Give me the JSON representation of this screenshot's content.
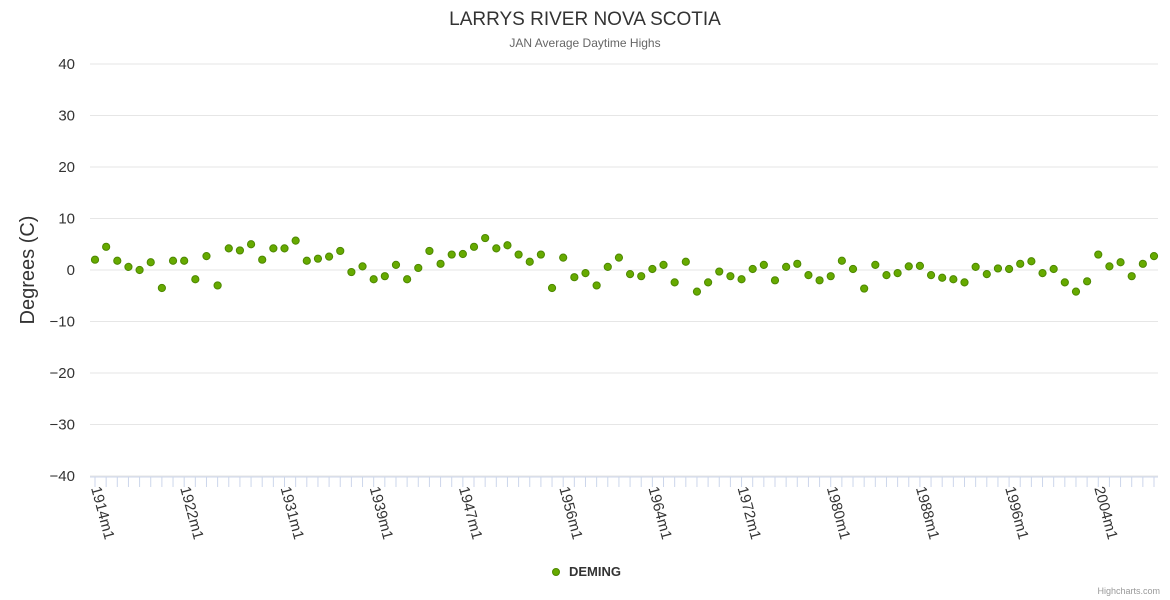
{
  "chart_data": {
    "type": "scatter",
    "title": "LARRYS RIVER NOVA SCOTIA",
    "subtitle": "JAN Average Daytime Highs",
    "ylabel": "Degrees (C)",
    "xlabel": "",
    "ylim": [
      -40,
      40
    ],
    "yticks": [
      40,
      30,
      20,
      10,
      0,
      -10,
      -20,
      -30,
      -40
    ],
    "ytick_labels": [
      "40",
      "30",
      "20",
      "10",
      "0",
      "−10",
      "−20",
      "−30",
      "−40"
    ],
    "xlim": [
      1914,
      2009
    ],
    "xticks": [
      1914,
      1922,
      1931,
      1939,
      1947,
      1956,
      1964,
      1972,
      1980,
      1988,
      1996,
      2004
    ],
    "xtick_labels": [
      "1914m1",
      "1922m1",
      "1931m1",
      "1939m1",
      "1947m1",
      "1956m1",
      "1964m1",
      "1972m1",
      "1980m1",
      "1988m1",
      "1996m1",
      "2004m1"
    ],
    "series": [
      {
        "name": "DEMING",
        "color": "#66aa00",
        "x": [
          1914,
          1915,
          1916,
          1917,
          1918,
          1919,
          1920,
          1921,
          1922,
          1923,
          1924,
          1925,
          1926,
          1927,
          1928,
          1929,
          1930,
          1931,
          1932,
          1933,
          1934,
          1935,
          1936,
          1937,
          1938,
          1939,
          1940,
          1941,
          1942,
          1943,
          1944,
          1945,
          1946,
          1947,
          1948,
          1949,
          1950,
          1951,
          1952,
          1953,
          1954,
          1955,
          1956,
          1957,
          1958,
          1959,
          1960,
          1961,
          1962,
          1963,
          1964,
          1965,
          1966,
          1967,
          1968,
          1969,
          1970,
          1971,
          1972,
          1973,
          1974,
          1975,
          1976,
          1977,
          1978,
          1979,
          1980,
          1981,
          1982,
          1983,
          1984,
          1985,
          1986,
          1987,
          1988,
          1989,
          1990,
          1991,
          1992,
          1993,
          1994,
          1995,
          1996,
          1997,
          1998,
          1999,
          2000,
          2001,
          2002,
          2003,
          2004,
          2005,
          2006,
          2007,
          2008,
          2009
        ],
        "values": [
          2.0,
          4.5,
          1.8,
          0.6,
          0.0,
          1.5,
          -3.5,
          1.8,
          1.8,
          -1.8,
          2.7,
          -3.0,
          4.2,
          3.8,
          5.0,
          2.0,
          4.2,
          4.2,
          5.7,
          1.8,
          2.2,
          2.6,
          3.7,
          -0.4,
          0.7,
          -1.8,
          -1.2,
          1.0,
          -1.8,
          0.4,
          3.7,
          1.2,
          3.0,
          3.1,
          4.5,
          6.2,
          4.2,
          4.8,
          3.0,
          1.6,
          3.0,
          -3.5,
          2.4,
          -1.4,
          -0.6,
          -3.0,
          0.6,
          2.4,
          -0.8,
          -1.2,
          0.2,
          1.0,
          -2.4,
          1.6,
          -4.2,
          -2.4,
          -0.3,
          -1.2,
          -1.8,
          0.2,
          1.0,
          -2.0,
          0.6,
          1.2,
          -1.0,
          -2.0,
          -1.2,
          1.8,
          0.2,
          -3.6,
          1.0,
          -1.0,
          -0.6,
          0.7,
          0.8,
          -1.0,
          -1.5,
          -1.8,
          -2.4,
          0.6,
          -0.8,
          0.3,
          0.2,
          1.2,
          1.7,
          -0.6,
          0.2,
          -2.4,
          -4.2,
          -2.2,
          3.0,
          0.7,
          1.5,
          -1.2,
          1.2,
          2.7
        ]
      }
    ],
    "legend": "bottom-center"
  },
  "credits": "Highcharts.com"
}
